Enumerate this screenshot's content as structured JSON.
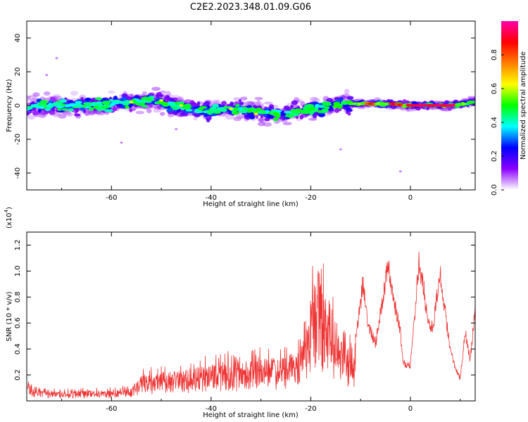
{
  "figure": {
    "title": "C2E2.2023.348.01.09.G06"
  },
  "chart_data": [
    {
      "type": "heatmap",
      "name": "spectrogram",
      "xlabel": "Height of straight line (km)",
      "ylabel": "Frequency (Hz)",
      "xlim": [
        -77,
        13
      ],
      "ylim": [
        -50,
        50
      ],
      "xticks": [
        -60,
        -40,
        -20,
        0
      ],
      "yticks": [
        -40,
        -20,
        0,
        20,
        40
      ],
      "ridge": [
        [
          -77,
          -1
        ],
        [
          -70,
          0
        ],
        [
          -63,
          0
        ],
        [
          -57,
          2
        ],
        [
          -52,
          3
        ],
        [
          -47,
          0
        ],
        [
          -44,
          -2
        ],
        [
          -40,
          -3
        ],
        [
          -35,
          -2
        ],
        [
          -30,
          -4
        ],
        [
          -27,
          -5
        ],
        [
          -25,
          -6
        ],
        [
          -22,
          -3
        ],
        [
          -18,
          -2
        ],
        [
          -15,
          0
        ],
        [
          -12,
          1
        ],
        [
          -8,
          1
        ],
        [
          -4,
          1
        ],
        [
          0,
          0
        ],
        [
          4,
          0
        ],
        [
          8,
          0
        ],
        [
          11,
          1
        ],
        [
          13,
          3
        ]
      ],
      "colorbar": {
        "label": "Normalized spectral amplitude",
        "range": [
          0,
          1
        ],
        "ticks": [
          0.0,
          0.2,
          0.4,
          0.6,
          0.8
        ],
        "stops": [
          "#ffffff",
          "#8b00ff",
          "#0000ff",
          "#00ffff",
          "#00ff00",
          "#ffff00",
          "#ff7f00",
          "#ff0000",
          "#ff00aa"
        ]
      }
    },
    {
      "type": "line",
      "name": "snr",
      "xlabel": "Height of straight line (km)",
      "ylabel": "SNR (10 * v/v)",
      "scale_label": "(x10",
      "scale_exponent": "4",
      "scale_suffix": ")",
      "xlim": [
        -77,
        13
      ],
      "ylim": [
        0,
        1.3
      ],
      "xticks": [
        -60,
        -40,
        -20,
        0
      ],
      "yticks": [
        0.2,
        0.4,
        0.6,
        0.8,
        1.0,
        1.2
      ],
      "color": "#ee3333",
      "envelope": [
        [
          -77,
          0.12
        ],
        [
          -74,
          0.08
        ],
        [
          -70,
          0.07
        ],
        [
          -65,
          0.08
        ],
        [
          -60,
          0.08
        ],
        [
          -56,
          0.1
        ],
        [
          -54,
          0.2
        ],
        [
          -50,
          0.22
        ],
        [
          -45,
          0.24
        ],
        [
          -42,
          0.27
        ],
        [
          -38,
          0.3
        ],
        [
          -34,
          0.3
        ],
        [
          -30,
          0.32
        ],
        [
          -26,
          0.34
        ],
        [
          -23,
          0.38
        ],
        [
          -21,
          0.52
        ],
        [
          -19.5,
          0.85
        ],
        [
          -18.5,
          1.05
        ],
        [
          -17,
          0.72
        ],
        [
          -15,
          0.62
        ],
        [
          -13,
          0.45
        ],
        [
          -11.5,
          0.35
        ],
        [
          -10,
          0.78
        ],
        [
          -9.5,
          0.95
        ],
        [
          -8.5,
          0.62
        ],
        [
          -7,
          0.45
        ],
        [
          -6,
          0.7
        ],
        [
          -5,
          0.95
        ],
        [
          -4.5,
          1.13
        ],
        [
          -3.5,
          0.82
        ],
        [
          -2,
          0.55
        ],
        [
          -1.5,
          0.3
        ],
        [
          0,
          0.28
        ],
        [
          1,
          0.75
        ],
        [
          1.7,
          1.09
        ],
        [
          2.5,
          0.95
        ],
        [
          3.5,
          0.62
        ],
        [
          4.5,
          0.58
        ],
        [
          5.5,
          0.9
        ],
        [
          6,
          0.99
        ],
        [
          7,
          0.7
        ],
        [
          8,
          0.42
        ],
        [
          9,
          0.25
        ],
        [
          10,
          0.18
        ],
        [
          11,
          0.55
        ],
        [
          12,
          0.32
        ],
        [
          13,
          0.75
        ]
      ]
    }
  ]
}
